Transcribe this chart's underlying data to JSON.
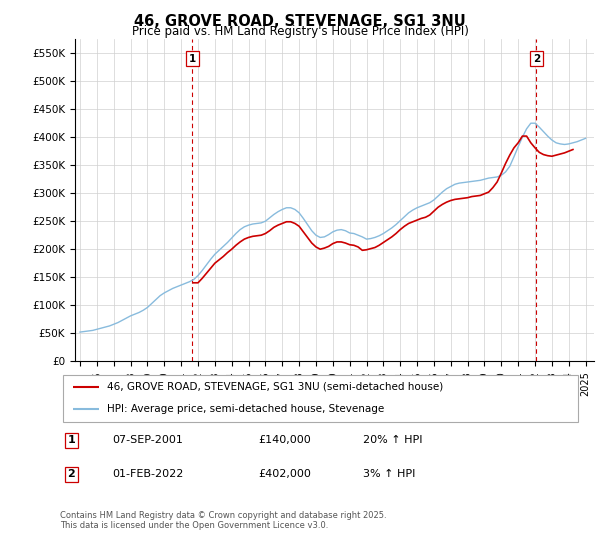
{
  "title": "46, GROVE ROAD, STEVENAGE, SG1 3NU",
  "subtitle": "Price paid vs. HM Land Registry's House Price Index (HPI)",
  "property_label": "46, GROVE ROAD, STEVENAGE, SG1 3NU (semi-detached house)",
  "hpi_label": "HPI: Average price, semi-detached house, Stevenage",
  "annotation1_date": "07-SEP-2001",
  "annotation1_price": "£140,000",
  "annotation1_hpi": "20% ↑ HPI",
  "annotation2_date": "01-FEB-2022",
  "annotation2_price": "£402,000",
  "annotation2_hpi": "3% ↑ HPI",
  "footer": "Contains HM Land Registry data © Crown copyright and database right 2025.\nThis data is licensed under the Open Government Licence v3.0.",
  "property_color": "#cc0000",
  "hpi_color": "#88bbdd",
  "annotation_color": "#cc0000",
  "ylim": [
    0,
    575000
  ],
  "yticks": [
    0,
    50000,
    100000,
    150000,
    200000,
    250000,
    300000,
    350000,
    400000,
    450000,
    500000,
    550000
  ],
  "ytick_labels": [
    "£0",
    "£50K",
    "£100K",
    "£150K",
    "£200K",
    "£250K",
    "£300K",
    "£350K",
    "£400K",
    "£450K",
    "£500K",
    "£550K"
  ],
  "property_sale1_x": 2001.67,
  "property_sale2_x": 2022.08,
  "hpi_x": [
    1995.0,
    1995.25,
    1995.5,
    1995.75,
    1996.0,
    1996.25,
    1996.5,
    1996.75,
    1997.0,
    1997.25,
    1997.5,
    1997.75,
    1998.0,
    1998.25,
    1998.5,
    1998.75,
    1999.0,
    1999.25,
    1999.5,
    1999.75,
    2000.0,
    2000.25,
    2000.5,
    2000.75,
    2001.0,
    2001.25,
    2001.5,
    2001.75,
    2002.0,
    2002.25,
    2002.5,
    2002.75,
    2003.0,
    2003.25,
    2003.5,
    2003.75,
    2004.0,
    2004.25,
    2004.5,
    2004.75,
    2005.0,
    2005.25,
    2005.5,
    2005.75,
    2006.0,
    2006.25,
    2006.5,
    2006.75,
    2007.0,
    2007.25,
    2007.5,
    2007.75,
    2008.0,
    2008.25,
    2008.5,
    2008.75,
    2009.0,
    2009.25,
    2009.5,
    2009.75,
    2010.0,
    2010.25,
    2010.5,
    2010.75,
    2011.0,
    2011.25,
    2011.5,
    2011.75,
    2012.0,
    2012.25,
    2012.5,
    2012.75,
    2013.0,
    2013.25,
    2013.5,
    2013.75,
    2014.0,
    2014.25,
    2014.5,
    2014.75,
    2015.0,
    2015.25,
    2015.5,
    2015.75,
    2016.0,
    2016.25,
    2016.5,
    2016.75,
    2017.0,
    2017.25,
    2017.5,
    2017.75,
    2018.0,
    2018.25,
    2018.5,
    2018.75,
    2019.0,
    2019.25,
    2019.5,
    2019.75,
    2020.0,
    2020.25,
    2020.5,
    2020.75,
    2021.0,
    2021.25,
    2021.5,
    2021.75,
    2022.0,
    2022.25,
    2022.5,
    2022.75,
    2023.0,
    2023.25,
    2023.5,
    2023.75,
    2024.0,
    2024.25,
    2024.5,
    2024.75,
    2025.0
  ],
  "hpi_y": [
    52000,
    53000,
    54000,
    55000,
    57000,
    59000,
    61000,
    63000,
    66000,
    69000,
    73000,
    77000,
    81000,
    84000,
    87000,
    91000,
    96000,
    103000,
    110000,
    117000,
    122000,
    126000,
    130000,
    133000,
    136000,
    139000,
    142000,
    146000,
    153000,
    162000,
    172000,
    182000,
    191000,
    198000,
    205000,
    212000,
    220000,
    228000,
    235000,
    240000,
    243000,
    245000,
    246000,
    247000,
    250000,
    256000,
    262000,
    267000,
    271000,
    274000,
    274000,
    271000,
    265000,
    255000,
    244000,
    233000,
    225000,
    221000,
    222000,
    226000,
    231000,
    234000,
    235000,
    233000,
    229000,
    228000,
    225000,
    222000,
    218000,
    219000,
    221000,
    224000,
    228000,
    233000,
    238000,
    244000,
    251000,
    258000,
    265000,
    270000,
    274000,
    277000,
    280000,
    283000,
    288000,
    295000,
    302000,
    308000,
    312000,
    316000,
    318000,
    319000,
    320000,
    321000,
    322000,
    323000,
    325000,
    327000,
    328000,
    329000,
    332000,
    338000,
    348000,
    365000,
    383000,
    400000,
    415000,
    425000,
    425000,
    418000,
    410000,
    402000,
    395000,
    390000,
    388000,
    387000,
    388000,
    390000,
    392000,
    395000,
    398000
  ],
  "property_x": [
    1995.0,
    1995.25,
    1995.5,
    1995.75,
    1996.0,
    1996.25,
    1996.5,
    1996.75,
    1997.0,
    1997.25,
    1997.5,
    1997.75,
    1998.0,
    1998.25,
    1998.5,
    1998.75,
    1999.0,
    1999.25,
    1999.5,
    1999.75,
    2000.0,
    2000.25,
    2000.5,
    2000.75,
    2001.0,
    2001.25,
    2001.5,
    2001.75,
    2002.0,
    2002.25,
    2002.5,
    2002.75,
    2003.0,
    2003.25,
    2003.5,
    2003.75,
    2004.0,
    2004.25,
    2004.5,
    2004.75,
    2005.0,
    2005.25,
    2005.5,
    2005.75,
    2006.0,
    2006.25,
    2006.5,
    2006.75,
    2007.0,
    2007.25,
    2007.5,
    2007.75,
    2008.0,
    2008.25,
    2008.5,
    2008.75,
    2009.0,
    2009.25,
    2009.5,
    2009.75,
    2010.0,
    2010.25,
    2010.5,
    2010.75,
    2011.0,
    2011.25,
    2011.5,
    2011.75,
    2012.0,
    2012.25,
    2012.5,
    2012.75,
    2013.0,
    2013.25,
    2013.5,
    2013.75,
    2014.0,
    2014.25,
    2014.5,
    2014.75,
    2015.0,
    2015.25,
    2015.5,
    2015.75,
    2016.0,
    2016.25,
    2016.5,
    2016.75,
    2017.0,
    2017.25,
    2017.5,
    2017.75,
    2018.0,
    2018.25,
    2018.5,
    2018.75,
    2019.0,
    2019.25,
    2019.5,
    2019.75,
    2020.0,
    2020.25,
    2020.5,
    2020.75,
    2021.0,
    2021.25,
    2021.5,
    2021.75,
    2022.0,
    2022.25,
    2022.5,
    2022.75,
    2023.0,
    2023.25,
    2023.5,
    2023.75,
    2024.0,
    2024.25,
    2024.5,
    2024.75,
    2025.0
  ],
  "property_y": [
    null,
    null,
    null,
    null,
    null,
    null,
    null,
    null,
    null,
    null,
    null,
    null,
    null,
    null,
    null,
    null,
    null,
    null,
    null,
    null,
    null,
    null,
    null,
    null,
    null,
    null,
    null,
    140000,
    140000,
    148000,
    157000,
    166000,
    175000,
    181000,
    187000,
    194000,
    200000,
    207000,
    213000,
    218000,
    221000,
    223000,
    224000,
    225000,
    228000,
    233000,
    239000,
    243000,
    246000,
    249000,
    249000,
    246000,
    241000,
    231000,
    221000,
    211000,
    204000,
    200000,
    202000,
    205000,
    210000,
    213000,
    213000,
    211000,
    208000,
    207000,
    204000,
    198000,
    199000,
    201000,
    203000,
    207000,
    212000,
    217000,
    222000,
    228000,
    235000,
    241000,
    246000,
    249000,
    252000,
    255000,
    257000,
    261000,
    268000,
    275000,
    280000,
    284000,
    287000,
    289000,
    290000,
    291000,
    292000,
    294000,
    295000,
    296000,
    299000,
    302000,
    310000,
    320000,
    336000,
    353000,
    368000,
    381000,
    390000,
    402000,
    402000,
    390000,
    381000,
    373000,
    369000,
    367000,
    366000,
    368000,
    370000,
    372000,
    375000,
    378000
  ],
  "xlim": [
    1994.7,
    2025.5
  ],
  "xticks": [
    1995,
    1996,
    1997,
    1998,
    1999,
    2000,
    2001,
    2002,
    2003,
    2004,
    2005,
    2006,
    2007,
    2008,
    2009,
    2010,
    2011,
    2012,
    2013,
    2014,
    2015,
    2016,
    2017,
    2018,
    2019,
    2020,
    2021,
    2022,
    2023,
    2024,
    2025
  ]
}
